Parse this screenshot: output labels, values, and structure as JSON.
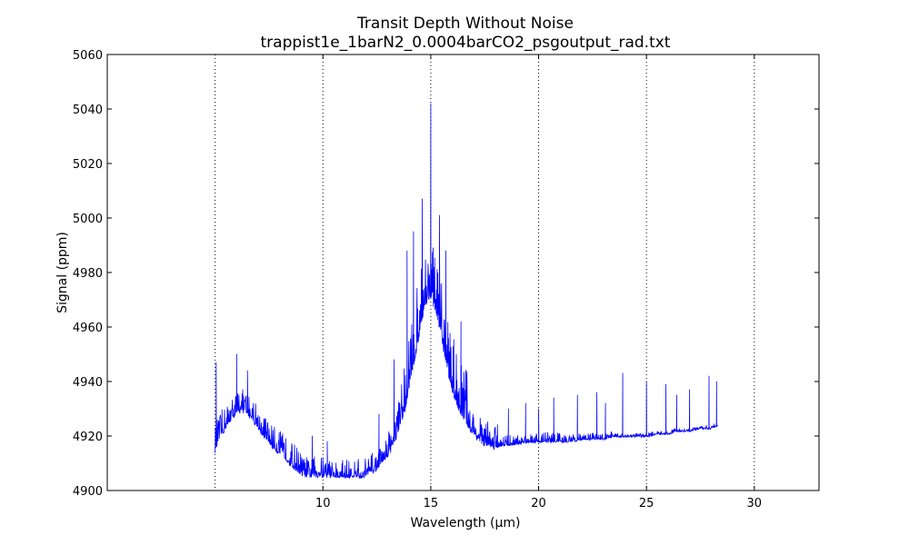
{
  "chart_data": {
    "type": "line",
    "title": "Transit Depth Without Noise",
    "subtitle": "trappist1e_1barN2_0.0004barCO2_psgoutput_rad.txt",
    "xlabel": "Wavelength (μm)",
    "ylabel": "Signal (ppm)",
    "xlim": [
      0,
      33
    ],
    "ylim": [
      4900,
      5060
    ],
    "xticks": [
      10,
      15,
      20,
      25,
      30
    ],
    "xtick_labels": [
      "10",
      "15",
      "20",
      "25",
      "30"
    ],
    "yticks": [
      4900,
      4920,
      4940,
      4960,
      4980,
      5000,
      5020,
      5040,
      5060
    ],
    "ytick_labels": [
      "4900",
      "4920",
      "4940",
      "4960",
      "4980",
      "5000",
      "5020",
      "5040",
      "5060"
    ],
    "vertical_gridlines": [
      5,
      10,
      15,
      20,
      25,
      30
    ],
    "grid": "vertical dotted",
    "legend": "none",
    "line_color": "#0000ff",
    "series": [
      {
        "x": [
          5.0,
          5.2,
          5.4,
          5.6,
          5.8,
          6.0,
          6.2,
          6.4,
          6.6,
          6.8,
          7.0,
          7.3,
          7.6,
          8.0,
          8.4,
          8.8,
          9.2,
          9.6,
          10.0,
          10.4,
          10.8,
          11.2,
          11.6,
          12.0,
          12.4,
          12.8,
          13.2,
          13.5,
          13.8,
          14.1,
          14.4,
          14.7,
          15.0,
          15.3,
          15.6,
          15.9,
          16.2,
          16.5,
          16.8,
          17.1,
          17.4,
          17.7,
          18.0,
          18.5,
          19.0,
          19.5,
          20.0,
          20.5,
          21.0,
          21.5,
          22.0,
          22.5,
          23.0,
          23.5,
          24.0,
          24.5,
          25.0,
          25.5,
          26.0,
          26.5,
          27.0,
          27.5,
          28.0,
          28.3
        ],
        "y": [
          4915,
          4920,
          4922,
          4925,
          4927,
          4929,
          4930,
          4929,
          4928,
          4926,
          4923,
          4920,
          4917,
          4914,
          4911,
          4908,
          4906,
          4906,
          4906,
          4906,
          4905,
          4905,
          4905,
          4906,
          4908,
          4911,
          4916,
          4922,
          4930,
          4942,
          4955,
          4968,
          4972,
          4964,
          4952,
          4940,
          4932,
          4927,
          4923,
          4920,
          4918,
          4917,
          4916,
          4917,
          4917,
          4918,
          4918,
          4918,
          4918,
          4918,
          4919,
          4919,
          4919,
          4920,
          4920,
          4920,
          4920,
          4921,
          4921,
          4922,
          4922,
          4923,
          4923,
          4924
        ]
      }
    ],
    "features": [
      {
        "x": 5.05,
        "y": 4947
      },
      {
        "x": 6.0,
        "y": 4950
      },
      {
        "x": 6.5,
        "y": 4944
      },
      {
        "x": 9.5,
        "y": 4920
      },
      {
        "x": 10.2,
        "y": 4918
      },
      {
        "x": 12.6,
        "y": 4928
      },
      {
        "x": 13.3,
        "y": 4948
      },
      {
        "x": 13.9,
        "y": 4988
      },
      {
        "x": 14.2,
        "y": 4995
      },
      {
        "x": 14.6,
        "y": 5007
      },
      {
        "x": 15.0,
        "y": 5042
      },
      {
        "x": 15.4,
        "y": 5001
      },
      {
        "x": 15.7,
        "y": 4988
      },
      {
        "x": 16.4,
        "y": 4962
      },
      {
        "x": 18.6,
        "y": 4930
      },
      {
        "x": 19.4,
        "y": 4932
      },
      {
        "x": 20.0,
        "y": 4930
      },
      {
        "x": 20.7,
        "y": 4934
      },
      {
        "x": 21.8,
        "y": 4935
      },
      {
        "x": 22.7,
        "y": 4936
      },
      {
        "x": 23.1,
        "y": 4932
      },
      {
        "x": 23.9,
        "y": 4943
      },
      {
        "x": 25.0,
        "y": 4940
      },
      {
        "x": 25.9,
        "y": 4939
      },
      {
        "x": 26.4,
        "y": 4935
      },
      {
        "x": 27.0,
        "y": 4937
      },
      {
        "x": 27.9,
        "y": 4942
      },
      {
        "x": 28.25,
        "y": 4940
      }
    ]
  }
}
